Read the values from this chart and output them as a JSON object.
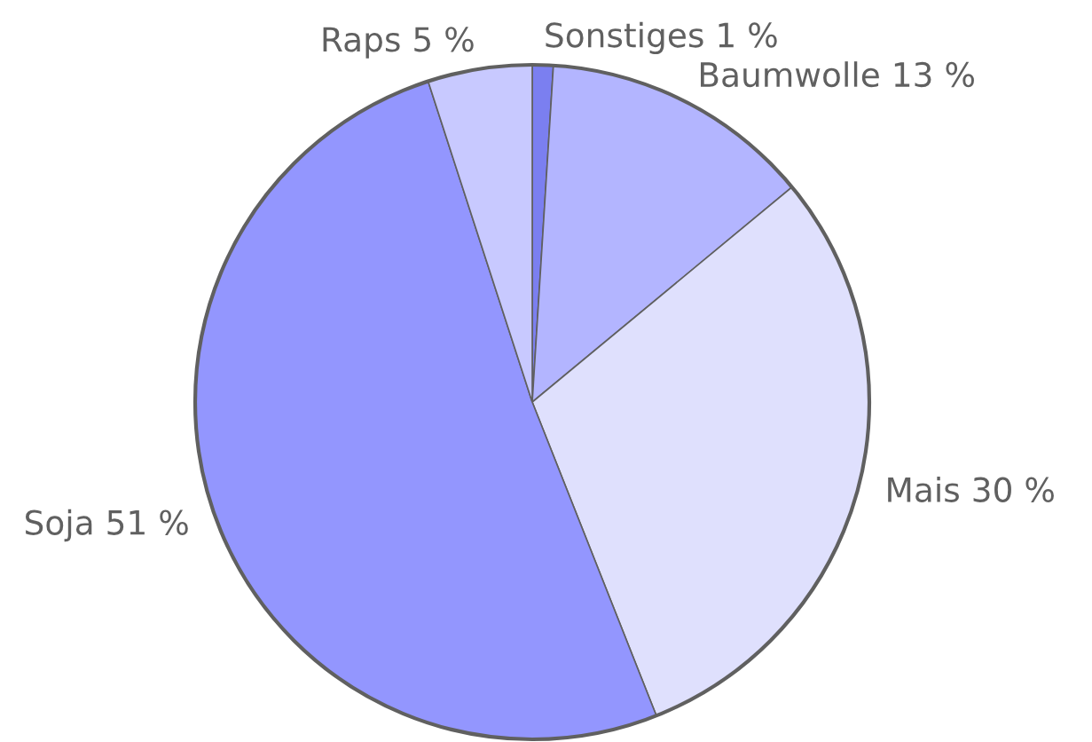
{
  "chart_data": {
    "type": "pie",
    "categories": [
      "Sonstiges",
      "Baumwolle",
      "Mais",
      "Soja",
      "Raps"
    ],
    "values": [
      1,
      13,
      30,
      51,
      5
    ],
    "value_labels": [
      "1 %",
      "13 %",
      "30 %",
      "51 %",
      "5 %"
    ],
    "colors": [
      "#7b7ff0",
      "#b3b5ff",
      "#dfe0fd",
      "#9396fe",
      "#c8c9ff"
    ]
  }
}
